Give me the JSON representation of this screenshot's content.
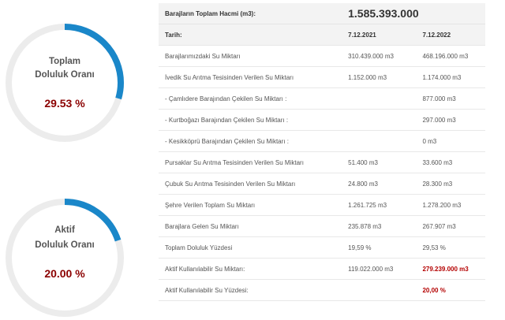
{
  "gauges": [
    {
      "label_line1": "Toplam",
      "label_line2": "Doluluk Oranı",
      "value": "29.53 %",
      "fraction": 0.2953
    },
    {
      "label_line1": "Aktif",
      "label_line2": "Doluluk Oranı",
      "value": "20.00 %",
      "fraction": 0.2
    }
  ],
  "colors": {
    "arc": "#1a87c9",
    "track": "#ececec",
    "value": "#8b0000"
  },
  "table": {
    "header_label": "Barajların Toplam Hacmi (m3):",
    "header_total": "1.585.393.000",
    "date_label": "Tarih:",
    "date1": "7.12.2021",
    "date2": "7.12.2022",
    "rows": [
      {
        "label": "Barajlarımızdaki Su Miktarı",
        "v1": "310.439.000 m3",
        "v2": "468.196.000 m3"
      },
      {
        "label": "İvedik Su Arıtma Tesisinden Verilen Su Miktarı",
        "v1": "1.152.000 m3",
        "v2": "1.174.000 m3"
      },
      {
        "label": "- Çamlıdere Barajından Çekilen Su Miktarı :",
        "v1": "",
        "v2": "877.000 m3"
      },
      {
        "label": "- Kurtboğazı Barajından Çekilen Su Miktarı :",
        "v1": "",
        "v2": "297.000 m3"
      },
      {
        "label": "- Kesikköprü Barajından Çekilen Su Miktarı :",
        "v1": "",
        "v2": "0 m3"
      },
      {
        "label": "Pursaklar Su Arıtma Tesisinden Verilen Su Miktarı",
        "v1": "51.400 m3",
        "v2": "33.600 m3"
      },
      {
        "label": "Çubuk Su Arıtma Tesisinden Verilen Su Miktarı",
        "v1": "24.800 m3",
        "v2": "28.300 m3"
      },
      {
        "label": "Şehre Verilen Toplam Su Miktarı",
        "v1": "1.261.725 m3",
        "v2": "1.278.200 m3"
      },
      {
        "label": "Barajlara Gelen Su Miktarı",
        "v1": "235.878 m3",
        "v2": "267.907 m3"
      },
      {
        "label": "Toplam Doluluk Yüzdesi",
        "v1": "19,59 %",
        "v2": "29,53 %"
      },
      {
        "label": "Aktif Kullanılabilir Su Miktarı:",
        "v1": "119.022.000 m3",
        "v2": "279.239.000 m3"
      },
      {
        "label": "Aktif Kullanılabilir Su Yüzdesi:",
        "v1": "",
        "v2": "20,00 %"
      }
    ]
  }
}
